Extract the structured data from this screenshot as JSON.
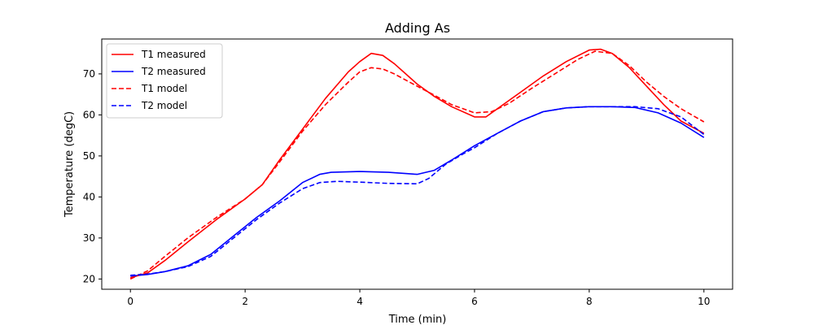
{
  "chart_data": {
    "type": "line",
    "title": "Adding As",
    "xlabel": "Time (min)",
    "ylabel": "Temperature (degC)",
    "xlim": [
      -0.5,
      10.5
    ],
    "ylim": [
      17.5,
      78.5
    ],
    "xticks": [
      0,
      2,
      4,
      6,
      8,
      10
    ],
    "yticks": [
      20,
      30,
      40,
      50,
      60,
      70
    ],
    "grid": false,
    "legend_position": "upper-left",
    "series": [
      {
        "name": "T1 measured",
        "color": "#ff0000",
        "dash": "solid",
        "x": [
          0,
          0.3,
          0.6,
          1.0,
          1.5,
          2.0,
          2.3,
          2.6,
          3.0,
          3.4,
          3.8,
          4.0,
          4.2,
          4.4,
          4.6,
          4.8,
          5.0,
          5.3,
          5.6,
          6.0,
          6.2,
          6.4,
          6.8,
          7.2,
          7.6,
          8.0,
          8.2,
          8.4,
          8.7,
          9.0,
          9.3,
          9.6,
          10.0
        ],
        "y": [
          20.3,
          21.5,
          24.5,
          29.0,
          34.5,
          39.5,
          43.0,
          49.0,
          56.5,
          64.0,
          70.5,
          73.0,
          75.0,
          74.5,
          72.5,
          70.0,
          67.5,
          64.5,
          62.0,
          59.5,
          59.5,
          61.5,
          65.5,
          69.5,
          73.0,
          75.8,
          76.0,
          75.0,
          71.5,
          67.0,
          62.5,
          58.5,
          55.5
        ]
      },
      {
        "name": "T2 measured",
        "color": "#0000ff",
        "dash": "solid",
        "x": [
          0,
          0.3,
          0.6,
          1.0,
          1.4,
          1.8,
          2.2,
          2.6,
          3.0,
          3.3,
          3.5,
          4.0,
          4.5,
          4.8,
          5.0,
          5.3,
          5.6,
          6.0,
          6.4,
          6.8,
          7.2,
          7.6,
          8.0,
          8.4,
          8.8,
          9.2,
          9.6,
          10.0
        ],
        "y": [
          20.7,
          21.1,
          21.8,
          23.2,
          26.0,
          30.5,
          35.0,
          39.0,
          43.5,
          45.5,
          46.0,
          46.2,
          46.0,
          45.7,
          45.5,
          46.5,
          49.0,
          52.5,
          55.5,
          58.5,
          60.8,
          61.7,
          62.0,
          62.0,
          61.8,
          60.5,
          58.0,
          54.5
        ]
      },
      {
        "name": "T1 model",
        "color": "#ff0000",
        "dash": "dashed",
        "x": [
          0,
          0.3,
          0.6,
          1.0,
          1.5,
          2.0,
          2.3,
          2.6,
          3.0,
          3.4,
          3.8,
          4.0,
          4.2,
          4.4,
          4.6,
          4.8,
          5.0,
          5.3,
          5.6,
          6.0,
          6.3,
          6.6,
          7.0,
          7.4,
          7.8,
          8.1,
          8.4,
          8.7,
          9.0,
          9.3,
          9.6,
          10.0
        ],
        "y": [
          20.0,
          22.0,
          25.5,
          30.0,
          35.0,
          39.5,
          43.0,
          48.5,
          56.0,
          62.5,
          68.0,
          70.5,
          71.5,
          71.2,
          70.0,
          68.5,
          67.0,
          64.8,
          62.5,
          60.5,
          60.8,
          62.8,
          66.5,
          70.0,
          73.5,
          75.5,
          75.0,
          72.0,
          68.0,
          64.5,
          61.5,
          58.3
        ]
      },
      {
        "name": "T2 model",
        "color": "#0000ff",
        "dash": "dashed",
        "x": [
          0,
          0.3,
          0.6,
          1.0,
          1.4,
          1.8,
          2.2,
          2.6,
          3.0,
          3.3,
          3.6,
          4.0,
          4.5,
          5.0,
          5.2,
          5.5,
          5.8,
          6.0,
          6.4,
          6.8,
          7.2,
          7.6,
          8.0,
          8.4,
          8.8,
          9.2,
          9.6,
          10.0
        ],
        "y": [
          20.9,
          21.2,
          21.8,
          23.0,
          25.5,
          30.0,
          34.5,
          38.5,
          42.0,
          43.5,
          43.8,
          43.6,
          43.3,
          43.2,
          44.5,
          48.0,
          50.5,
          52.0,
          55.5,
          58.5,
          60.8,
          61.7,
          62.0,
          62.0,
          62.0,
          61.5,
          59.5,
          55.2
        ]
      }
    ]
  }
}
